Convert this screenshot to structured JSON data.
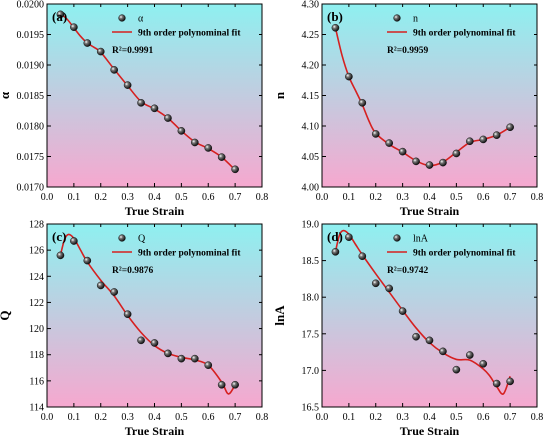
{
  "figure": {
    "colors": {
      "bg_top": "#8ef0f0",
      "bg_bottom": "#f6a8cf",
      "fit_line": "#d62020",
      "marker": "#222222",
      "axis": "#000000"
    }
  },
  "chart_data": [
    {
      "type": "scatter",
      "panel_label": "(a)",
      "xlabel": "True Strain",
      "ylabel": "α",
      "xlim": [
        0.0,
        0.8
      ],
      "ylim": [
        0.017,
        0.02
      ],
      "xticks": [
        0.0,
        0.1,
        0.2,
        0.3,
        0.4,
        0.5,
        0.6,
        0.7,
        0.8
      ],
      "xtick_labels": [
        "0.0",
        "0.1",
        "0.2",
        "0.3",
        "0.4",
        "0.5",
        "0.6",
        "0.7",
        "0.8"
      ],
      "yticks": [
        0.017,
        0.0175,
        0.018,
        0.0185,
        0.019,
        0.0195,
        0.02
      ],
      "ytick_labels": [
        "0.0170",
        "0.0175",
        "0.0180",
        "0.0185",
        "0.0190",
        "0.0195",
        "0.0200"
      ],
      "legend": {
        "marker_label": "α",
        "fit_label": "9th order polynominal fit",
        "r2": "R²=0.9991",
        "position": "top"
      },
      "series": [
        {
          "name": "α",
          "x": [
            0.05,
            0.1,
            0.15,
            0.2,
            0.25,
            0.3,
            0.35,
            0.4,
            0.45,
            0.5,
            0.55,
            0.6,
            0.65,
            0.7
          ],
          "y": [
            0.01983,
            0.01962,
            0.01936,
            0.01922,
            0.01892,
            0.01867,
            0.01838,
            0.01829,
            0.01813,
            0.01792,
            0.01773,
            0.01764,
            0.01749,
            0.01729
          ]
        }
      ],
      "fit": {
        "x": [
          0.05,
          0.075,
          0.1,
          0.125,
          0.15,
          0.175,
          0.2,
          0.25,
          0.3,
          0.35,
          0.4,
          0.45,
          0.5,
          0.55,
          0.6,
          0.65,
          0.7
        ],
        "y": [
          0.01984,
          0.01975,
          0.01961,
          0.01947,
          0.01936,
          0.01929,
          0.01921,
          0.01893,
          0.01866,
          0.0184,
          0.01828,
          0.01813,
          0.01792,
          0.01774,
          0.01763,
          0.01749,
          0.01728
        ]
      }
    },
    {
      "type": "scatter",
      "panel_label": "(b)",
      "xlabel": "True Strain",
      "ylabel": "n",
      "xlim": [
        0.0,
        0.8
      ],
      "ylim": [
        4.0,
        4.3
      ],
      "xticks": [
        0.0,
        0.1,
        0.2,
        0.3,
        0.4,
        0.5,
        0.6,
        0.7,
        0.8
      ],
      "xtick_labels": [
        "0.0",
        "0.1",
        "0.2",
        "0.3",
        "0.4",
        "0.5",
        "0.6",
        "0.7",
        "0.8"
      ],
      "yticks": [
        4.0,
        4.05,
        4.1,
        4.15,
        4.2,
        4.25,
        4.3
      ],
      "ytick_labels": [
        "4.00",
        "4.05",
        "4.10",
        "4.15",
        "4.20",
        "4.25",
        "4.30"
      ],
      "legend": {
        "marker_label": "n",
        "fit_label": "9th order polynominal fit",
        "r2": "R²=0.9959",
        "position": "top"
      },
      "series": [
        {
          "name": "n",
          "x": [
            0.05,
            0.1,
            0.15,
            0.2,
            0.25,
            0.3,
            0.35,
            0.4,
            0.45,
            0.5,
            0.55,
            0.6,
            0.65,
            0.7
          ],
          "y": [
            4.261,
            4.181,
            4.138,
            4.087,
            4.072,
            4.058,
            4.042,
            4.036,
            4.04,
            4.055,
            4.075,
            4.078,
            4.085,
            4.098
          ]
        }
      ],
      "fit": {
        "x": [
          0.05,
          0.075,
          0.1,
          0.125,
          0.15,
          0.175,
          0.2,
          0.25,
          0.3,
          0.35,
          0.4,
          0.45,
          0.5,
          0.55,
          0.6,
          0.65,
          0.7
        ],
        "y": [
          4.261,
          4.215,
          4.181,
          4.158,
          4.135,
          4.108,
          4.088,
          4.07,
          4.057,
          4.043,
          4.035,
          4.041,
          4.057,
          4.073,
          4.078,
          4.085,
          4.098
        ]
      }
    },
    {
      "type": "scatter",
      "panel_label": "(c)",
      "xlabel": "True Strain",
      "ylabel": "Q",
      "xlim": [
        0.0,
        0.8
      ],
      "ylim": [
        114,
        128
      ],
      "xticks": [
        0.0,
        0.1,
        0.2,
        0.3,
        0.4,
        0.5,
        0.6,
        0.7,
        0.8
      ],
      "xtick_labels": [
        "0.0",
        "0.1",
        "0.2",
        "0.3",
        "0.4",
        "0.5",
        "0.6",
        "0.7",
        "0.8"
      ],
      "yticks": [
        114,
        116,
        118,
        120,
        122,
        124,
        126,
        128
      ],
      "ytick_labels": [
        "114",
        "116",
        "118",
        "120",
        "122",
        "124",
        "126",
        "128"
      ],
      "legend": {
        "marker_label": "Q",
        "fit_label": "9th order polynominal fit",
        "r2": "R²=0.9876",
        "position": "top"
      },
      "series": [
        {
          "name": "Q",
          "x": [
            0.05,
            0.1,
            0.15,
            0.2,
            0.25,
            0.3,
            0.35,
            0.4,
            0.45,
            0.5,
            0.55,
            0.6,
            0.65,
            0.7
          ],
          "y": [
            125.6,
            126.7,
            125.2,
            123.3,
            122.8,
            121.1,
            119.1,
            118.9,
            118.1,
            117.7,
            117.7,
            117.2,
            115.7,
            115.7
          ]
        }
      ],
      "fit": {
        "x": [
          0.05,
          0.065,
          0.08,
          0.1,
          0.125,
          0.15,
          0.2,
          0.25,
          0.3,
          0.35,
          0.4,
          0.45,
          0.5,
          0.55,
          0.6,
          0.65,
          0.675,
          0.7
        ],
        "y": [
          125.6,
          126.8,
          127.2,
          126.9,
          126.0,
          125.1,
          123.7,
          122.5,
          121.0,
          119.7,
          118.7,
          118.1,
          117.8,
          117.6,
          117.2,
          115.9,
          115.0,
          115.7
        ]
      }
    },
    {
      "type": "scatter",
      "panel_label": "(d)",
      "xlabel": "True Strain",
      "ylabel": "lnA",
      "xlim": [
        0.0,
        0.8
      ],
      "ylim": [
        16.5,
        19.0
      ],
      "xticks": [
        0.0,
        0.1,
        0.2,
        0.3,
        0.4,
        0.5,
        0.6,
        0.7,
        0.8
      ],
      "xtick_labels": [
        "0.0",
        "0.1",
        "0.2",
        "0.3",
        "0.4",
        "0.5",
        "0.6",
        "0.7",
        "0.8"
      ],
      "yticks": [
        16.5,
        17.0,
        17.5,
        18.0,
        18.5,
        19.0
      ],
      "ytick_labels": [
        "16.5",
        "17.0",
        "17.5",
        "18.0",
        "18.5",
        "19.0"
      ],
      "legend": {
        "marker_label": "lnA",
        "fit_label": "9th order polynominal fit",
        "r2": "R²=0.9742",
        "position": "top"
      },
      "series": [
        {
          "name": "lnA",
          "x": [
            0.05,
            0.1,
            0.15,
            0.2,
            0.25,
            0.3,
            0.35,
            0.4,
            0.45,
            0.5,
            0.55,
            0.6,
            0.65,
            0.7
          ],
          "y": [
            18.62,
            18.82,
            18.56,
            18.19,
            18.12,
            17.81,
            17.46,
            17.41,
            17.26,
            17.01,
            17.21,
            17.09,
            16.82,
            16.85
          ]
        }
      ],
      "fit": {
        "x": [
          0.05,
          0.065,
          0.08,
          0.1,
          0.125,
          0.15,
          0.2,
          0.25,
          0.3,
          0.35,
          0.4,
          0.45,
          0.5,
          0.55,
          0.6,
          0.625,
          0.65,
          0.675,
          0.7
        ],
        "y": [
          18.62,
          18.85,
          18.91,
          18.86,
          18.72,
          18.58,
          18.32,
          18.07,
          17.82,
          17.58,
          17.38,
          17.24,
          17.15,
          17.14,
          17.02,
          16.92,
          16.78,
          16.68,
          16.92
        ]
      }
    }
  ]
}
